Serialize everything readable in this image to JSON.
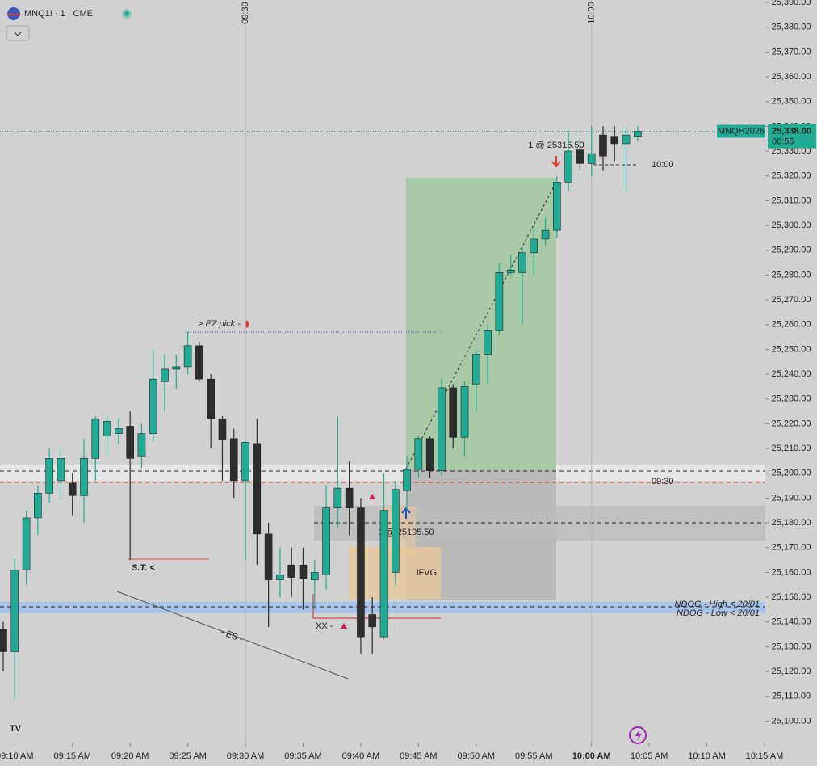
{
  "chart_data": {
    "type": "candlestick",
    "title": "MNQ1! · 1 · CME",
    "x": [
      "09:09",
      "09:10",
      "09:11",
      "09:12",
      "09:13",
      "09:14",
      "09:15",
      "09:16",
      "09:17",
      "09:18",
      "09:19",
      "09:20",
      "09:21",
      "09:22",
      "09:23",
      "09:24",
      "09:25",
      "09:26",
      "09:27",
      "09:28",
      "09:29",
      "09:30",
      "09:31",
      "09:32",
      "09:33",
      "09:34",
      "09:35",
      "09:36",
      "09:37",
      "09:38",
      "09:39",
      "09:40",
      "09:41",
      "09:42",
      "09:43",
      "09:44",
      "09:45",
      "09:46",
      "09:47",
      "09:48",
      "09:49",
      "09:50",
      "09:51",
      "09:52",
      "09:53",
      "09:54",
      "09:55",
      "09:56",
      "09:57",
      "09:58",
      "09:59",
      "10:00",
      "10:01",
      "10:02",
      "10:03",
      "10:04"
    ],
    "series": [
      {
        "name": "MNQ1!",
        "up_color": "#22ab94",
        "down_color": "#2e2e2e",
        "open": [
          25137,
          25128,
          25161,
          25182,
          25192,
          25197,
          25196,
          25191,
          25206,
          25215,
          25216,
          25219,
          25207,
          25216,
          25237,
          25242,
          25243,
          25251.5,
          25238,
          25222,
          25214,
          25197,
          25212,
          25175.5,
          25157,
          25163,
          25163,
          25157,
          25159,
          25186,
          25194,
          25186,
          25143,
          25134,
          25160,
          25193,
          25201.5,
          25214,
          25201,
          25234.5,
          25214.5,
          25236,
          25248,
          25257.5,
          25281,
          25281,
          25289,
          25294.5,
          25298,
          25317.5,
          25330.5,
          25325,
          25336.5,
          25336,
          25333,
          25336
        ],
        "high": [
          25140,
          25166,
          25185,
          25195,
          25210,
          25211,
          25200,
          25214,
          25223,
          25223,
          25222,
          25225,
          25220,
          25250,
          25248,
          25248,
          25257,
          25253,
          25240,
          25223,
          25218,
          25213,
          25222,
          25180,
          25170,
          25170,
          25170,
          25165,
          25195,
          25223,
          25205,
          25190,
          25150,
          25200,
          25197,
          25207,
          25215,
          25215,
          25238,
          25236,
          25237,
          25250,
          25260,
          25285,
          25288,
          25291,
          25299,
          25303,
          25320,
          25338,
          25336,
          25340,
          25340,
          25340,
          25340,
          25340
        ],
        "low": [
          25120,
          25108,
          25155,
          25175,
          25188,
          25190,
          25183,
          25180,
          25197,
          25207,
          25212,
          25165,
          25202,
          25213,
          25225,
          25234,
          25240,
          25237,
          25210,
          25197,
          25190,
          25165,
          25163,
          25138,
          25150,
          25150,
          25145,
          25145,
          25153,
          25178,
          25175,
          25127,
          25127,
          25133,
          25155,
          25185,
          25198,
          25198,
          25199,
          25210,
          25207,
          25225,
          25236,
          25256,
          25280,
          25260,
          25280,
          25292,
          25295,
          25314,
          25322,
          25320,
          25322,
          25326,
          25313.5,
          25334
        ],
        "close": [
          25128,
          25161,
          25182,
          25192,
          25206,
          25206,
          25191,
          25206,
          25222,
          25221,
          25218,
          25206,
          25216,
          25238,
          25242,
          25243,
          25251.5,
          25238,
          25222,
          25213.5,
          25197,
          25212.5,
          25175.5,
          25157,
          25159,
          25158,
          25157.5,
          25160,
          25186,
          25194,
          25186,
          25134,
          25138,
          25185,
          25193.5,
          25201.5,
          25214,
          25201,
          25234.5,
          25214.5,
          25235,
          25248,
          25257.5,
          25281,
          25282,
          25289,
          25294.5,
          25298,
          25317.5,
          25330,
          25325,
          25329,
          25328,
          25333,
          25336.5,
          25338
        ]
      }
    ],
    "ylim": [
      25091,
      25391
    ],
    "yticks": [
      {
        "value": 25100,
        "label": "25,100.00"
      },
      {
        "value": 25110,
        "label": "25,110.00"
      },
      {
        "value": 25120,
        "label": "25,120.00"
      },
      {
        "value": 25130,
        "label": "25,130.00"
      },
      {
        "value": 25140,
        "label": "25,140.00"
      },
      {
        "value": 25150,
        "label": "25,150.00"
      },
      {
        "value": 25160,
        "label": "25,160.00"
      },
      {
        "value": 25170,
        "label": "25,170.00"
      },
      {
        "value": 25180,
        "label": "25,180.00"
      },
      {
        "value": 25190,
        "label": "25,190.00"
      },
      {
        "value": 25200,
        "label": "25,200.00"
      },
      {
        "value": 25210,
        "label": "25,210.00"
      },
      {
        "value": 25220,
        "label": "25,220.00"
      },
      {
        "value": 25230,
        "label": "25,230.00"
      },
      {
        "value": 25240,
        "label": "25,240.00"
      },
      {
        "value": 25250,
        "label": "25,250.00"
      },
      {
        "value": 25260,
        "label": "25,260.00"
      },
      {
        "value": 25270,
        "label": "25,270.00"
      },
      {
        "value": 25280,
        "label": "25,280.00"
      },
      {
        "value": 25290,
        "label": "25,290.00"
      },
      {
        "value": 25300,
        "label": "25,300.00"
      },
      {
        "value": 25310,
        "label": "25,310.00"
      },
      {
        "value": 25320,
        "label": "25,320.00"
      },
      {
        "value": 25330,
        "label": "25,330.00"
      },
      {
        "value": 25340,
        "label": "25,340.00"
      },
      {
        "value": 25350,
        "label": "25,350.00"
      },
      {
        "value": 25360,
        "label": "25,360.00"
      },
      {
        "value": 25370,
        "label": "25,370.00"
      },
      {
        "value": 25380,
        "label": "25,380.00"
      },
      {
        "value": 25390,
        "label": "25,390.00"
      }
    ],
    "xlim": [
      "09:09",
      "10:15"
    ],
    "xticks": [
      {
        "value": "09:10",
        "label": "09:10 AM"
      },
      {
        "value": "09:15",
        "label": "09:15 AM"
      },
      {
        "value": "09:20",
        "label": "09:20 AM"
      },
      {
        "value": "09:25",
        "label": "09:25 AM"
      },
      {
        "value": "09:30",
        "label": "09:30 AM"
      },
      {
        "value": "09:35",
        "label": "09:35 AM"
      },
      {
        "value": "09:40",
        "label": "09:40 AM"
      },
      {
        "value": "09:45",
        "label": "09:45 AM"
      },
      {
        "value": "09:50",
        "label": "09:50 AM"
      },
      {
        "value": "09:55",
        "label": "09:55 AM"
      },
      {
        "value": "10:00",
        "label": "10:00 AM"
      },
      {
        "value": "10:05",
        "label": "10:05 AM"
      },
      {
        "value": "10:10",
        "label": "10:10 AM"
      },
      {
        "value": "10:15",
        "label": "10:15 AM"
      }
    ],
    "session_lines": [
      "09:30",
      "10:00"
    ],
    "last_price": {
      "symbol": "MNQH2026",
      "value": 25338,
      "label": "25,338.00",
      "countdown": "00:55",
      "color": "#22ab94"
    },
    "annotations": [
      "> EZ pick -",
      "S.T. <",
      "- ES -",
      "XX -",
      "iFVG",
      "1 @ 25315.50",
      "1 @ 25195.50",
      "10:00",
      "09:30",
      "NDOG - High < 20/01",
      "NDOG - Low < 20/01"
    ]
  }
}
